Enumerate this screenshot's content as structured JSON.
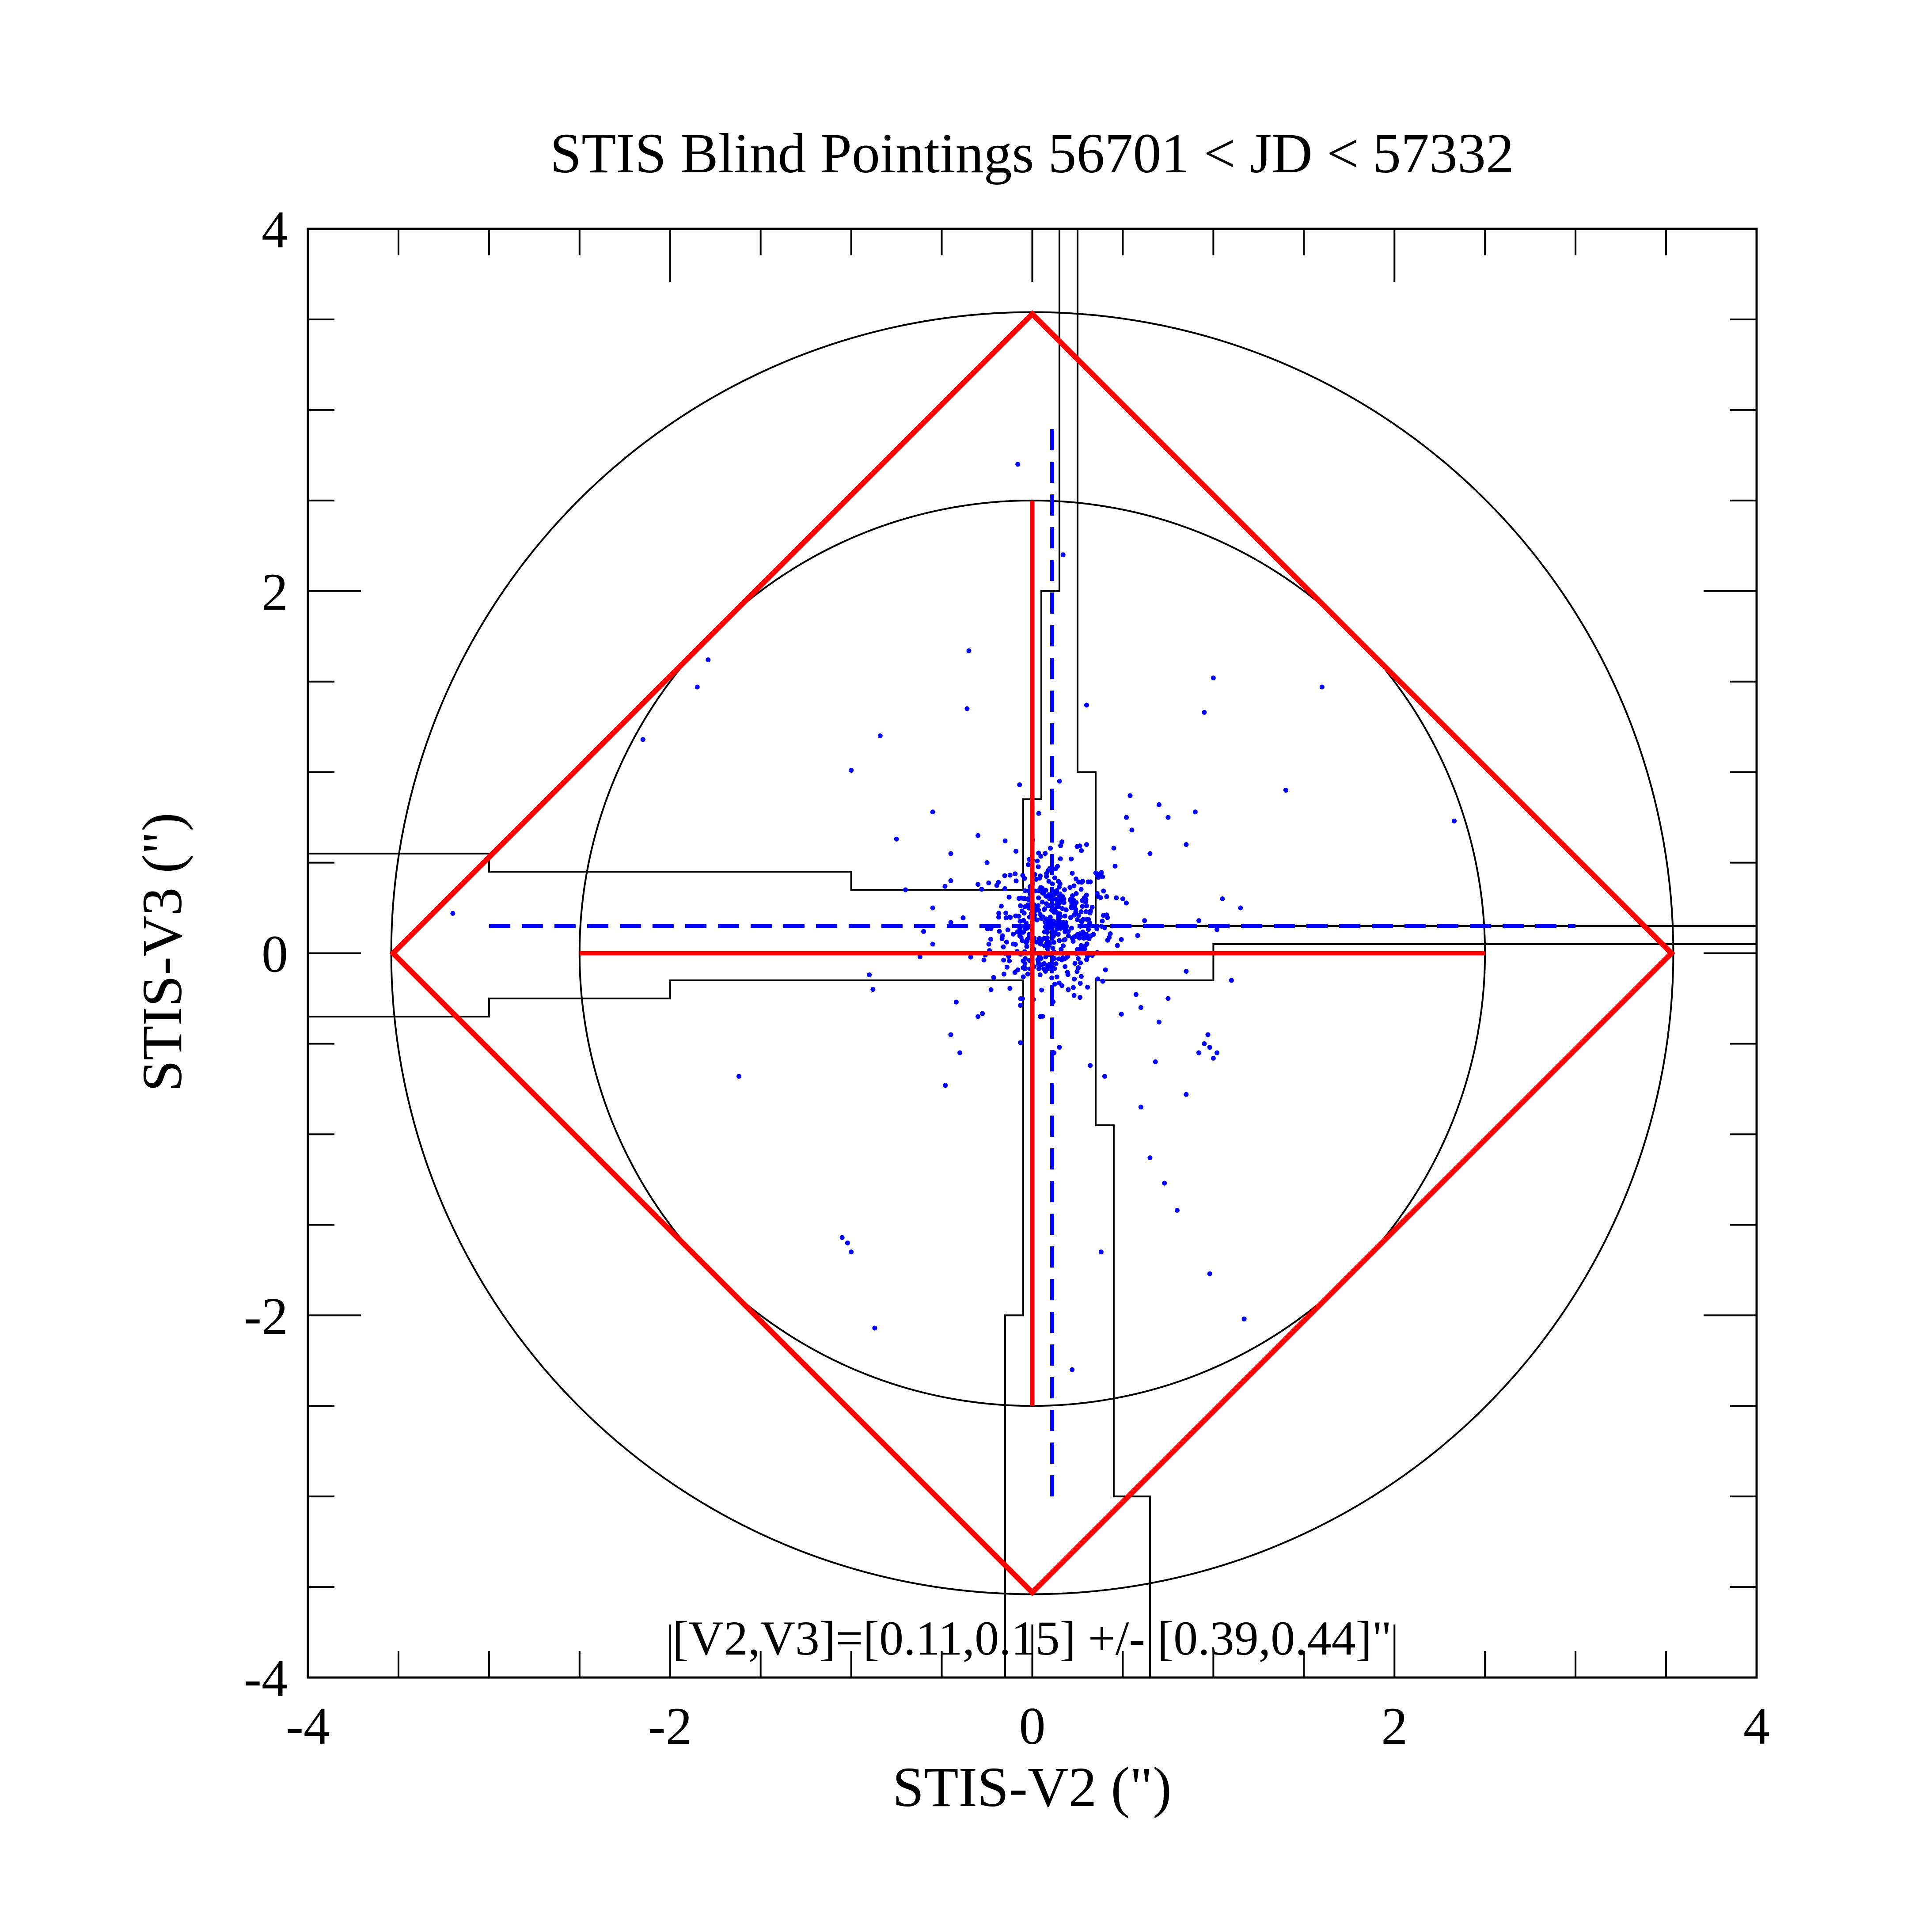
{
  "chart_data": {
    "type": "scatter",
    "title": "STIS Blind Pointings 56701 < JD < 57332",
    "xlabel": "STIS-V2 (\")",
    "ylabel": "STIS-V3 (\")",
    "annotation": "[V2,V3]=[0.11,0.15] +/- [0.39,0.44]\"",
    "xlim": [
      -4,
      4
    ],
    "ylim": [
      -4,
      4
    ],
    "x_ticks": [
      -4,
      -2,
      0,
      2,
      4
    ],
    "y_ticks": [
      -4,
      -2,
      0,
      2,
      4
    ],
    "x_tick_labels": [
      "-4",
      "-2",
      "0",
      "2",
      "4"
    ],
    "y_tick_labels": [
      "-4",
      "-2",
      "0",
      "2",
      "4"
    ],
    "minor_tick_step": 0.5,
    "grid": false,
    "colors": {
      "points": "#0000ff",
      "mean_cross": "#0000ff",
      "aperture_diamond": "#ff0000",
      "aperture_cross": "#ff0000",
      "outline": "#000000"
    },
    "circles": [
      {
        "cx": 0,
        "cy": 0,
        "r": 2.5
      },
      {
        "cx": 0,
        "cy": 0,
        "r": 3.54
      }
    ],
    "red_diamond": [
      [
        0,
        3.53
      ],
      [
        3.53,
        0
      ],
      [
        0,
        -3.53
      ],
      [
        -3.53,
        0
      ]
    ],
    "red_cross": {
      "x": [
        -2.5,
        2.5
      ],
      "y": [
        -2.5,
        2.5
      ]
    },
    "blue_dashed_cross": {
      "x0": 0.11,
      "y0": 0.15,
      "x_range": [
        -3.0,
        3.0
      ],
      "y_range": [
        -3.0,
        2.95
      ]
    },
    "outline_upper_left": [
      [
        -4,
        0.55
      ],
      [
        -3,
        0.55
      ],
      [
        -3,
        0.45
      ],
      [
        -1,
        0.45
      ],
      [
        -1,
        0.35
      ],
      [
        -0.45,
        0.35
      ],
      [
        -0.45,
        0.35
      ],
      [
        -0.05,
        0.35
      ],
      [
        -0.05,
        0.85
      ],
      [
        -0.05,
        0.85
      ],
      [
        0.05,
        0.85
      ],
      [
        0.05,
        2.0
      ],
      [
        0.15,
        2.0
      ],
      [
        0.15,
        4
      ]
    ],
    "outline_upper_right": [
      [
        0.25,
        4
      ],
      [
        0.25,
        1.0
      ],
      [
        0.35,
        1.0
      ],
      [
        0.35,
        0.15
      ],
      [
        4,
        0.15
      ]
    ],
    "outline_lower_right": [
      [
        4,
        0.05
      ],
      [
        1.0,
        0.05
      ],
      [
        1.0,
        -0.15
      ],
      [
        0.35,
        -0.15
      ],
      [
        0.35,
        -0.95
      ],
      [
        0.45,
        -0.95
      ],
      [
        0.45,
        -3.0
      ],
      [
        0.65,
        -3.0
      ],
      [
        0.65,
        -4
      ]
    ],
    "outline_lower_left": [
      [
        -4,
        -0.35
      ],
      [
        -3,
        -0.35
      ],
      [
        -3,
        -0.25
      ],
      [
        -2,
        -0.25
      ],
      [
        -2,
        -0.15
      ],
      [
        -0.05,
        -0.15
      ],
      [
        -0.05,
        -2.0
      ],
      [
        -0.15,
        -2.0
      ],
      [
        -0.15,
        -4
      ]
    ],
    "points": [
      [
        -0.08,
        2.7
      ],
      [
        -0.35,
        1.67
      ],
      [
        -0.36,
        1.35
      ],
      [
        -1.85,
        1.47
      ],
      [
        -1.79,
        1.62
      ],
      [
        -2.15,
        1.18
      ],
      [
        -0.84,
        1.2
      ],
      [
        -1.0,
        1.01
      ],
      [
        -0.07,
        0.93
      ],
      [
        0.15,
        0.95
      ],
      [
        0.17,
        2.2
      ],
      [
        0.3,
        1.37
      ],
      [
        0.95,
        1.33
      ],
      [
        1.0,
        1.52
      ],
      [
        1.6,
        1.47
      ],
      [
        1.4,
        0.9
      ],
      [
        2.33,
        0.73
      ],
      [
        0.54,
        0.87
      ],
      [
        0.7,
        0.82
      ],
      [
        0.52,
        0.75
      ],
      [
        0.75,
        0.75
      ],
      [
        0.9,
        0.78
      ],
      [
        0.55,
        0.68
      ],
      [
        0.85,
        0.6
      ],
      [
        0.65,
        0.55
      ],
      [
        0.45,
        0.58
      ],
      [
        0.3,
        0.6
      ],
      [
        -0.15,
        0.62
      ],
      [
        -0.55,
        0.78
      ],
      [
        -0.75,
        0.63
      ],
      [
        -0.45,
        0.55
      ],
      [
        -0.3,
        0.65
      ],
      [
        -0.25,
        0.5
      ],
      [
        -0.3,
        0.38
      ],
      [
        -0.45,
        0.4
      ],
      [
        -0.7,
        0.35
      ],
      [
        -0.55,
        0.25
      ],
      [
        -0.6,
        0.12
      ],
      [
        -0.45,
        0.17
      ],
      [
        -0.55,
        0.05
      ],
      [
        -0.62,
        -0.02
      ],
      [
        -0.9,
        -0.12
      ],
      [
        -0.88,
        -0.2
      ],
      [
        -0.42,
        -0.27
      ],
      [
        -0.3,
        -0.35
      ],
      [
        -0.45,
        -0.45
      ],
      [
        -0.4,
        -0.55
      ],
      [
        -0.48,
        -0.73
      ],
      [
        -1.62,
        -0.68
      ],
      [
        0.6,
        -0.3
      ],
      [
        0.7,
        -0.38
      ],
      [
        0.75,
        -0.25
      ],
      [
        0.85,
        -0.1
      ],
      [
        1.1,
        -0.15
      ],
      [
        1.05,
        0.3
      ],
      [
        1.15,
        0.25
      ],
      [
        1.02,
        0.13
      ],
      [
        0.92,
        0.18
      ],
      [
        0.62,
        0.18
      ],
      [
        0.5,
        0.3
      ],
      [
        0.95,
        -0.5
      ],
      [
        0.98,
        -0.52
      ],
      [
        1.02,
        -0.55
      ],
      [
        1.0,
        -0.58
      ],
      [
        0.92,
        -0.55
      ],
      [
        0.97,
        -0.45
      ],
      [
        0.68,
        -0.6
      ],
      [
        0.6,
        -0.85
      ],
      [
        0.85,
        -0.78
      ],
      [
        0.4,
        -0.68
      ],
      [
        0.32,
        -0.62
      ],
      [
        0.65,
        -1.13
      ],
      [
        0.73,
        -1.27
      ],
      [
        0.8,
        -1.42
      ],
      [
        0.98,
        -1.77
      ],
      [
        1.17,
        -2.02
      ],
      [
        0.38,
        -1.65
      ],
      [
        0.22,
        -2.3
      ],
      [
        -1.05,
        -1.57
      ],
      [
        -1.02,
        -1.6
      ],
      [
        -1.0,
        -1.65
      ],
      [
        -0.87,
        -2.07
      ],
      [
        -3.2,
        0.22
      ],
      [
        0.12,
        -0.55
      ],
      [
        0.15,
        -0.52
      ]
    ],
    "point_cluster": {
      "center": [
        0.11,
        0.15
      ],
      "sd": [
        0.17,
        0.19
      ],
      "count": 460
    }
  }
}
